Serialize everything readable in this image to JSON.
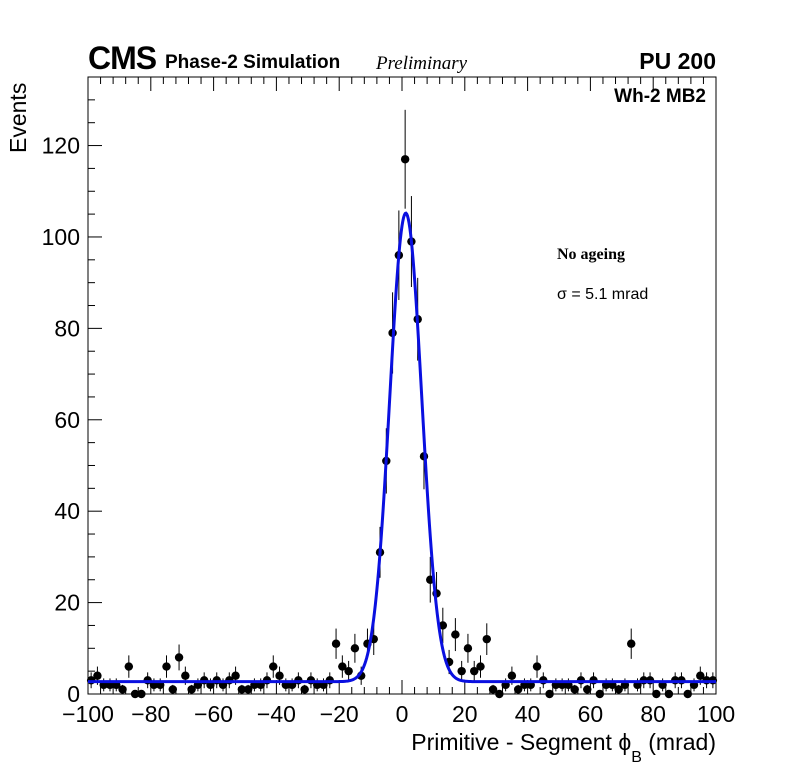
{
  "header": {
    "experiment": "CMS",
    "label": "Phase-2 Simulation",
    "status": "Preliminary",
    "pileup": "PU 200"
  },
  "chart_data": {
    "type": "scatter",
    "xlabel": "Primitive - Segment ϕ",
    "xlabel_sub": "B",
    "xlabel_unit": " (mrad)",
    "ylabel": "Events",
    "xlim": [
      -100,
      100
    ],
    "ylim": [
      0,
      135
    ],
    "xticks": [
      -100,
      -80,
      -60,
      -40,
      -20,
      0,
      20,
      40,
      60,
      80,
      100
    ],
    "xtick_labels": [
      "−100",
      "−80",
      "−60",
      "−40",
      "−20",
      "0",
      "20",
      "40",
      "60",
      "80",
      "100"
    ],
    "yticks": [
      0,
      20,
      40,
      60,
      80,
      100,
      120
    ],
    "annotations": {
      "region": "Wh-2 MB2",
      "condition": "No ageing",
      "sigma": "σ = 5.1 mrad"
    },
    "series": [
      {
        "style": "markers-with-errors",
        "color": "#000000",
        "x": [
          -99,
          -97,
          -95,
          -93,
          -91,
          -89,
          -87,
          -85,
          -83,
          -81,
          -79,
          -77,
          -75,
          -73,
          -71,
          -69,
          -67,
          -65,
          -63,
          -61,
          -59,
          -57,
          -55,
          -53,
          -51,
          -49,
          -47,
          -45,
          -43,
          -41,
          -39,
          -37,
          -35,
          -33,
          -31,
          -29,
          -27,
          -25,
          -23,
          -21,
          -19,
          -17,
          -15,
          -13,
          -11,
          -9,
          -7,
          -5,
          -3,
          -1,
          1,
          3,
          5,
          7,
          9,
          11,
          13,
          15,
          17,
          19,
          21,
          23,
          25,
          27,
          29,
          31,
          33,
          35,
          37,
          39,
          41,
          43,
          45,
          47,
          49,
          51,
          53,
          55,
          57,
          59,
          61,
          63,
          65,
          67,
          69,
          71,
          73,
          75,
          77,
          79,
          81,
          83,
          85,
          87,
          89,
          91,
          93,
          95,
          97,
          99
        ],
        "y": [
          3,
          4,
          2,
          2,
          2,
          1,
          6,
          0,
          0,
          3,
          2,
          2,
          6,
          1,
          8,
          4,
          1,
          2,
          3,
          2,
          3,
          2,
          3,
          4,
          1,
          1,
          2,
          2,
          3,
          6,
          4,
          2,
          2,
          3,
          1,
          3,
          2,
          2,
          3,
          11,
          6,
          5,
          10,
          4,
          11,
          12,
          31,
          51,
          79,
          96,
          117,
          99,
          82,
          52,
          25,
          22,
          15,
          7,
          13,
          5,
          10,
          5,
          6,
          12,
          1,
          0,
          2,
          4,
          1,
          2,
          2,
          6,
          3,
          0,
          2,
          2,
          2,
          1,
          3,
          1,
          3,
          0,
          2,
          2,
          1,
          2,
          11,
          2,
          3,
          3,
          0,
          2,
          0,
          3,
          3,
          0,
          2,
          4,
          3,
          3
        ]
      },
      {
        "style": "fit-curve",
        "color": "#0a10e0",
        "function": "gaussian+constant",
        "mean": 1.2,
        "sigma": 5.1,
        "amplitude": 102.5,
        "baseline": 2.7
      }
    ]
  }
}
